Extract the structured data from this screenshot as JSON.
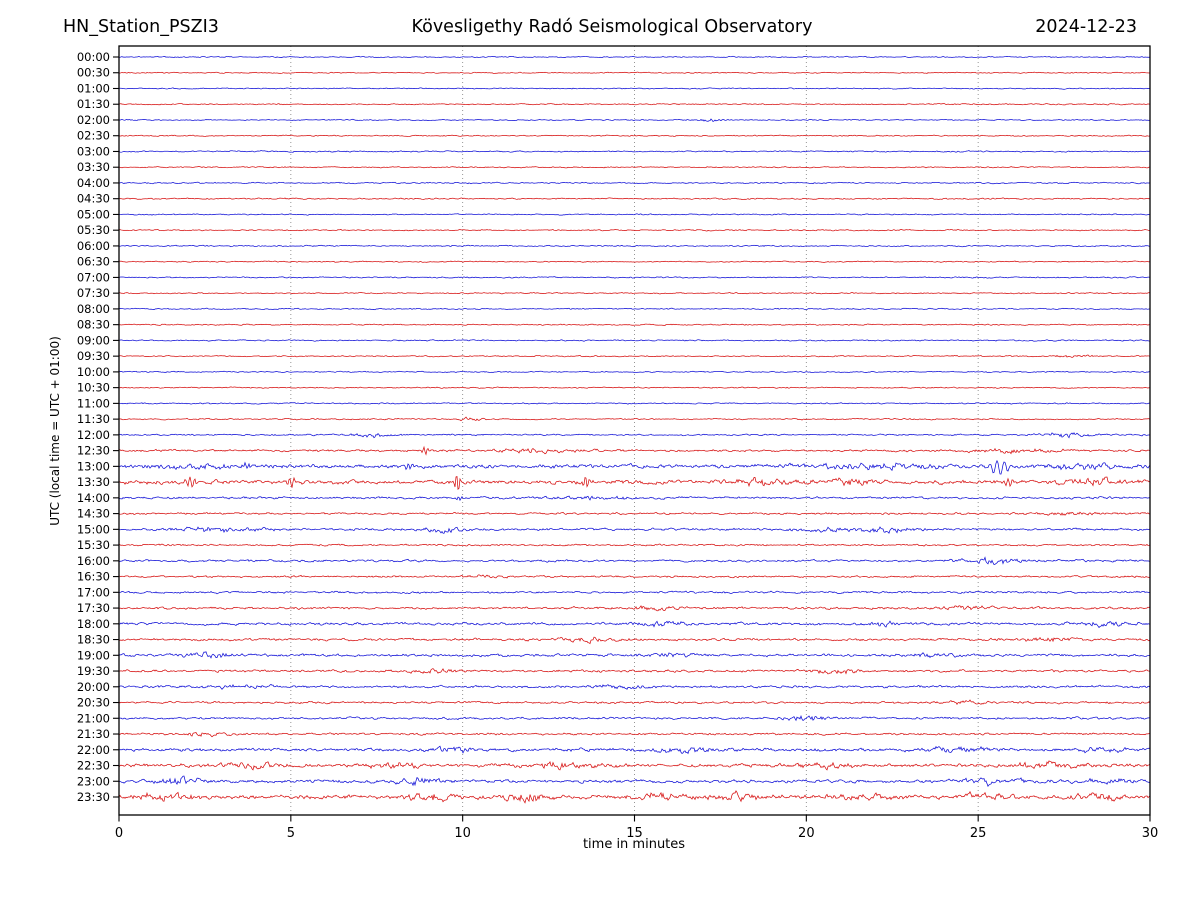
{
  "header": {
    "station": "HN_Station_PSZI3",
    "observatory": "Kövesligethy Radó Seismological Observatory",
    "date": "2024-12-23"
  },
  "axes": {
    "xlabel": "time in minutes",
    "ylabel": "UTC (local time = UTC + 01:00)",
    "xticks": [
      0,
      5,
      10,
      15,
      20,
      25,
      30
    ],
    "xmin": 0,
    "xmax": 30
  },
  "colors": {
    "trace_blue": "#1010d6",
    "trace_red": "#d61010",
    "grid": "#8a8a8a",
    "frame": "#000000"
  },
  "chart_data": {
    "type": "line",
    "subtype": "helicorder-dayplot",
    "title": "HN_Station_PSZI3 — Kövesligethy Radó Seismological Observatory — 2024-12-23",
    "xlabel": "time in minutes",
    "ylabel": "UTC (local time = UTC + 01:00)",
    "x_range_minutes": [
      0,
      30
    ],
    "row_duration_minutes": 30,
    "grid": "vertical dotted at 5-minute intervals",
    "legend": "none",
    "rows": [
      {
        "label": "00:00",
        "color": "blue",
        "noise": 0.5,
        "events": [],
        "spikes": []
      },
      {
        "label": "00:30",
        "color": "red",
        "noise": 0.5,
        "events": [],
        "spikes": []
      },
      {
        "label": "01:00",
        "color": "blue",
        "noise": 0.5,
        "events": [],
        "spikes": []
      },
      {
        "label": "01:30",
        "color": "red",
        "noise": 0.55,
        "events": [],
        "spikes": []
      },
      {
        "label": "02:00",
        "color": "blue",
        "noise": 0.5,
        "events": [
          {
            "t": 17.2,
            "amp": 1.2,
            "dur": 0.3
          }
        ],
        "spikes": []
      },
      {
        "label": "02:30",
        "color": "red",
        "noise": 0.55,
        "events": [],
        "spikes": []
      },
      {
        "label": "03:00",
        "color": "blue",
        "noise": 0.6,
        "events": [],
        "spikes": []
      },
      {
        "label": "03:30",
        "color": "red",
        "noise": 0.55,
        "events": [],
        "spikes": []
      },
      {
        "label": "04:00",
        "color": "blue",
        "noise": 0.6,
        "events": [],
        "spikes": []
      },
      {
        "label": "04:30",
        "color": "red",
        "noise": 0.6,
        "events": [],
        "spikes": []
      },
      {
        "label": "05:00",
        "color": "blue",
        "noise": 0.55,
        "events": [],
        "spikes": []
      },
      {
        "label": "05:30",
        "color": "red",
        "noise": 0.55,
        "events": [],
        "spikes": []
      },
      {
        "label": "06:00",
        "color": "blue",
        "noise": 0.6,
        "events": [],
        "spikes": []
      },
      {
        "label": "06:30",
        "color": "red",
        "noise": 0.55,
        "events": [],
        "spikes": []
      },
      {
        "label": "07:00",
        "color": "blue",
        "noise": 0.6,
        "events": [],
        "spikes": []
      },
      {
        "label": "07:30",
        "color": "red",
        "noise": 0.55,
        "events": [],
        "spikes": []
      },
      {
        "label": "08:00",
        "color": "blue",
        "noise": 0.55,
        "events": [],
        "spikes": []
      },
      {
        "label": "08:30",
        "color": "red",
        "noise": 0.55,
        "events": [],
        "spikes": []
      },
      {
        "label": "09:00",
        "color": "blue",
        "noise": 0.6,
        "events": [],
        "spikes": []
      },
      {
        "label": "09:30",
        "color": "red",
        "noise": 0.55,
        "events": [
          {
            "t": 27.8,
            "amp": 1.0,
            "dur": 0.4
          }
        ],
        "spikes": []
      },
      {
        "label": "10:00",
        "color": "blue",
        "noise": 0.55,
        "events": [],
        "spikes": []
      },
      {
        "label": "10:30",
        "color": "red",
        "noise": 0.55,
        "events": [],
        "spikes": []
      },
      {
        "label": "11:00",
        "color": "blue",
        "noise": 0.6,
        "events": [],
        "spikes": []
      },
      {
        "label": "11:30",
        "color": "red",
        "noise": 0.6,
        "events": [
          {
            "t": 10.2,
            "amp": 1.4,
            "dur": 0.25
          }
        ],
        "spikes": []
      },
      {
        "label": "12:00",
        "color": "blue",
        "noise": 0.7,
        "events": [
          {
            "t": 7.4,
            "amp": 2.2,
            "dur": 0.35
          },
          {
            "t": 27.6,
            "amp": 1.8,
            "dur": 0.5
          }
        ],
        "spikes": []
      },
      {
        "label": "12:30",
        "color": "red",
        "noise": 1.0,
        "events": [
          {
            "t": 12,
            "amp": 1.2,
            "dur": 1
          },
          {
            "t": 26,
            "amp": 1.2,
            "dur": 1
          }
        ],
        "spikes": [
          {
            "t": 8.9,
            "amp": 4,
            "sig": 0.08,
            "freq": 55
          }
        ]
      },
      {
        "label": "13:00",
        "color": "blue",
        "noise": 1.7,
        "events": [
          {
            "t": 2,
            "amp": 1.5,
            "dur": 0.8
          },
          {
            "t": 21.8,
            "amp": 2.2,
            "dur": 1.2
          },
          {
            "t": 28,
            "amp": 2,
            "dur": 0.8
          }
        ],
        "spikes": [
          {
            "t": 3.7,
            "amp": 3,
            "sig": 0.07,
            "freq": 60
          },
          {
            "t": 8.45,
            "amp": 3.5,
            "sig": 0.1,
            "freq": 50
          },
          {
            "t": 25.6,
            "amp": 7,
            "sig": 0.22,
            "freq": 30
          }
        ]
      },
      {
        "label": "13:30",
        "color": "red",
        "noise": 1.8,
        "events": [
          {
            "t": 18.6,
            "amp": 2,
            "dur": 0.6
          },
          {
            "t": 21.3,
            "amp": 2,
            "dur": 0.6
          },
          {
            "t": 28.4,
            "amp": 2.2,
            "dur": 0.6
          }
        ],
        "spikes": [
          {
            "t": 2.1,
            "amp": 5,
            "sig": 0.12,
            "freq": 45
          },
          {
            "t": 5.0,
            "amp": 4.5,
            "sig": 0.1,
            "freq": 50
          },
          {
            "t": 9.85,
            "amp": 9,
            "sig": 0.07,
            "freq": 55
          },
          {
            "t": 13.6,
            "amp": 4.5,
            "sig": 0.09,
            "freq": 55
          },
          {
            "t": 25.9,
            "amp": 3,
            "sig": 0.1,
            "freq": 50
          }
        ]
      },
      {
        "label": "14:00",
        "color": "blue",
        "noise": 1.0,
        "events": [
          {
            "t": 14,
            "amp": 1,
            "dur": 1
          }
        ],
        "spikes": [
          {
            "t": 9.9,
            "amp": 2.5,
            "sig": 0.07,
            "freq": 60
          }
        ]
      },
      {
        "label": "14:30",
        "color": "red",
        "noise": 0.85,
        "events": [
          {
            "t": 27.7,
            "amp": 1.2,
            "dur": 0.8
          }
        ],
        "spikes": []
      },
      {
        "label": "15:00",
        "color": "blue",
        "noise": 1.05,
        "events": [
          {
            "t": 2.9,
            "amp": 1.8,
            "dur": 0.8
          },
          {
            "t": 9.4,
            "amp": 1.6,
            "dur": 0.5
          },
          {
            "t": 20.6,
            "amp": 1.6,
            "dur": 0.6
          },
          {
            "t": 22.4,
            "amp": 2.2,
            "dur": 0.5
          }
        ],
        "spikes": []
      },
      {
        "label": "15:30",
        "color": "red",
        "noise": 0.8,
        "events": [],
        "spikes": []
      },
      {
        "label": "16:00",
        "color": "blue",
        "noise": 1.0,
        "events": [
          {
            "t": 25.4,
            "amp": 2.6,
            "dur": 0.7
          }
        ],
        "spikes": []
      },
      {
        "label": "16:30",
        "color": "red",
        "noise": 0.85,
        "events": [
          {
            "t": 10.5,
            "amp": 1.1,
            "dur": 0.5
          }
        ],
        "spikes": []
      },
      {
        "label": "17:00",
        "color": "blue",
        "noise": 0.95,
        "events": [],
        "spikes": []
      },
      {
        "label": "17:30",
        "color": "red",
        "noise": 1.0,
        "events": [
          {
            "t": 15.6,
            "amp": 1.3,
            "dur": 0.5
          },
          {
            "t": 24.6,
            "amp": 1.3,
            "dur": 0.6
          }
        ],
        "spikes": []
      },
      {
        "label": "18:00",
        "color": "blue",
        "noise": 1.15,
        "events": [
          {
            "t": 15.8,
            "amp": 1.8,
            "dur": 0.5
          },
          {
            "t": 22.3,
            "amp": 1.6,
            "dur": 0.4
          },
          {
            "t": 28.6,
            "amp": 1.8,
            "dur": 0.6
          }
        ],
        "spikes": []
      },
      {
        "label": "18:30",
        "color": "red",
        "noise": 1.1,
        "events": [
          {
            "t": 13.6,
            "amp": 1.8,
            "dur": 0.5
          },
          {
            "t": 27,
            "amp": 1.3,
            "dur": 0.6
          }
        ],
        "spikes": []
      },
      {
        "label": "19:00",
        "color": "blue",
        "noise": 1.2,
        "events": [
          {
            "t": 2.6,
            "amp": 1.6,
            "dur": 0.6
          },
          {
            "t": 16,
            "amp": 1.8,
            "dur": 0.5
          },
          {
            "t": 23.6,
            "amp": 1.5,
            "dur": 0.5
          }
        ],
        "spikes": []
      },
      {
        "label": "19:30",
        "color": "red",
        "noise": 1.1,
        "events": [
          {
            "t": 9.1,
            "amp": 1.4,
            "dur": 0.5
          },
          {
            "t": 20.9,
            "amp": 1.9,
            "dur": 0.5
          }
        ],
        "spikes": []
      },
      {
        "label": "20:00",
        "color": "blue",
        "noise": 1.1,
        "events": [
          {
            "t": 3.6,
            "amp": 1.8,
            "dur": 0.6
          },
          {
            "t": 14.6,
            "amp": 1.5,
            "dur": 0.5
          }
        ],
        "spikes": []
      },
      {
        "label": "20:30",
        "color": "red",
        "noise": 0.95,
        "events": [
          {
            "t": 24.6,
            "amp": 1.1,
            "dur": 0.5
          }
        ],
        "spikes": []
      },
      {
        "label": "21:00",
        "color": "blue",
        "noise": 1.0,
        "events": [
          {
            "t": 20,
            "amp": 2,
            "dur": 0.4
          }
        ],
        "spikes": []
      },
      {
        "label": "21:30",
        "color": "red",
        "noise": 0.95,
        "events": [
          {
            "t": 2.4,
            "amp": 1.8,
            "dur": 0.35
          }
        ],
        "spikes": []
      },
      {
        "label": "22:00",
        "color": "blue",
        "noise": 1.4,
        "events": [
          {
            "t": 9.6,
            "amp": 1.7,
            "dur": 0.5
          },
          {
            "t": 16.6,
            "amp": 2.2,
            "dur": 0.6
          },
          {
            "t": 24.4,
            "amp": 2.2,
            "dur": 0.6
          },
          {
            "t": 28.6,
            "amp": 1.8,
            "dur": 0.5
          }
        ],
        "spikes": []
      },
      {
        "label": "22:30",
        "color": "red",
        "noise": 1.5,
        "events": [
          {
            "t": 4,
            "amp": 2.2,
            "dur": 0.7
          },
          {
            "t": 8,
            "amp": 2.2,
            "dur": 0.6
          },
          {
            "t": 13,
            "amp": 2.2,
            "dur": 0.8
          },
          {
            "t": 20.6,
            "amp": 1.8,
            "dur": 0.6
          },
          {
            "t": 27,
            "amp": 2.2,
            "dur": 0.7
          }
        ],
        "spikes": []
      },
      {
        "label": "23:00",
        "color": "blue",
        "noise": 1.45,
        "events": [
          {
            "t": 1.9,
            "amp": 2.6,
            "dur": 0.5
          },
          {
            "t": 8.7,
            "amp": 2.2,
            "dur": 0.5
          },
          {
            "t": 25.4,
            "amp": 2.6,
            "dur": 0.5
          },
          {
            "t": 28.8,
            "amp": 2.2,
            "dur": 0.4
          }
        ],
        "spikes": []
      },
      {
        "label": "23:30",
        "color": "red",
        "noise": 1.8,
        "events": [
          {
            "t": 1.3,
            "amp": 3,
            "dur": 0.5
          },
          {
            "t": 9.1,
            "amp": 2.6,
            "dur": 0.5
          },
          {
            "t": 11.9,
            "amp": 3,
            "dur": 0.45
          },
          {
            "t": 15.6,
            "amp": 2.2,
            "dur": 0.5
          },
          {
            "t": 18.1,
            "amp": 2.6,
            "dur": 0.5
          },
          {
            "t": 21.6,
            "amp": 2.2,
            "dur": 0.5
          },
          {
            "t": 25.1,
            "amp": 2.2,
            "dur": 0.5
          },
          {
            "t": 28.6,
            "amp": 2.6,
            "dur": 0.5
          }
        ],
        "spikes": [
          {
            "t": 12,
            "amp": 3.5,
            "sig": 0.08,
            "freq": 55
          }
        ]
      }
    ]
  }
}
